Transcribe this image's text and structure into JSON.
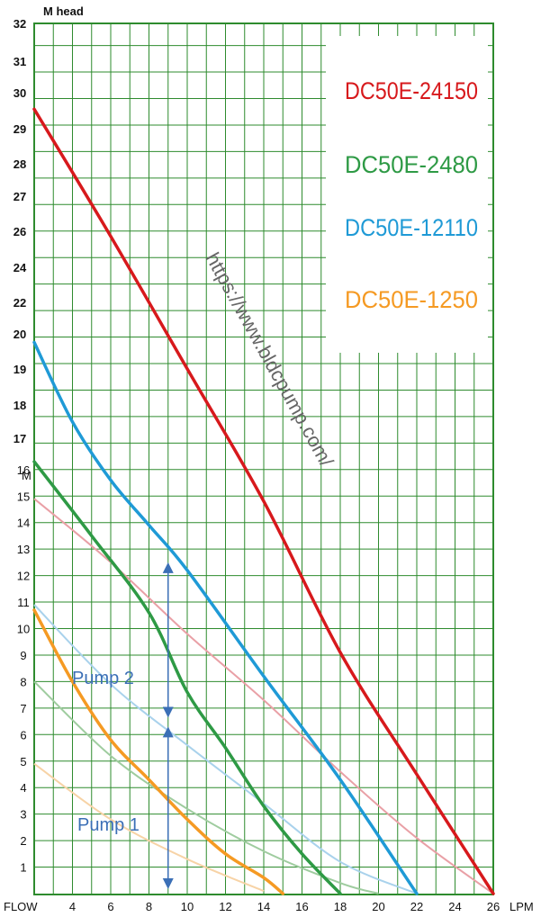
{
  "chart_data": {
    "type": "line",
    "ylabel": "M head",
    "ylabel_lower": "M",
    "xlabel_left": "FLOW",
    "xlabel_right": "LPM",
    "x_ticks": [
      "4",
      "6",
      "8",
      "10",
      "12",
      "14",
      "16",
      "18",
      "20",
      "22",
      "24",
      "26"
    ],
    "y_ticks_upper": [
      "32",
      "31",
      "30",
      "29",
      "28",
      "27",
      "26",
      "24",
      "22",
      "20",
      "19",
      "18",
      "17"
    ],
    "y_ticks_lower": [
      "16",
      "15",
      "14",
      "13",
      "12",
      "11",
      "10",
      "9",
      "8",
      "7",
      "6",
      "5",
      "4",
      "3",
      "2",
      "1"
    ],
    "xlim": [
      2,
      26
    ],
    "series": [
      {
        "name": "DC50E-24150",
        "color": "#d7191c",
        "points": [
          [
            2,
            29.6
          ],
          [
            6,
            24.8
          ],
          [
            10,
            19.8
          ],
          [
            14,
            14.8
          ],
          [
            18,
            9.1
          ],
          [
            22,
            4.5
          ],
          [
            26,
            0
          ]
        ]
      },
      {
        "name": "DC50E-2480",
        "color": "#2e9a45",
        "points": [
          [
            2,
            16.3
          ],
          [
            5,
            13.5
          ],
          [
            8,
            10.6
          ],
          [
            10,
            7.6
          ],
          [
            12,
            5.5
          ],
          [
            14,
            3.3
          ],
          [
            16,
            1.5
          ],
          [
            18,
            0
          ]
        ]
      },
      {
        "name": "DC50E-12110",
        "color": "#1f9ad6",
        "points": [
          [
            2,
            20.8
          ],
          [
            4,
            17.8
          ],
          [
            6,
            15.6
          ],
          [
            8,
            13.9
          ],
          [
            10,
            12.2
          ],
          [
            14,
            8.2
          ],
          [
            18,
            4.3
          ],
          [
            22,
            0
          ]
        ]
      },
      {
        "name": "DC50E-1250",
        "color": "#f59a23",
        "points": [
          [
            2,
            10.7
          ],
          [
            4,
            8.0
          ],
          [
            6,
            5.8
          ],
          [
            8,
            4.3
          ],
          [
            10,
            2.8
          ],
          [
            12,
            1.5
          ],
          [
            14,
            0.6
          ],
          [
            15,
            0
          ]
        ]
      }
    ],
    "faded_series": [
      {
        "color": "#e9a0a6",
        "points": [
          [
            2,
            14.9
          ],
          [
            6,
            12.5
          ],
          [
            10,
            9.8
          ],
          [
            14,
            7.3
          ],
          [
            18,
            4.6
          ],
          [
            22,
            2.1
          ],
          [
            26,
            0
          ]
        ]
      },
      {
        "color": "#9fcc9f",
        "points": [
          [
            2,
            8.0
          ],
          [
            6,
            5.2
          ],
          [
            10,
            3.2
          ],
          [
            14,
            1.6
          ],
          [
            18,
            0.4
          ],
          [
            20,
            0
          ]
        ]
      },
      {
        "color": "#a9d2ec",
        "points": [
          [
            2,
            10.9
          ],
          [
            6,
            7.9
          ],
          [
            10,
            5.6
          ],
          [
            14,
            3.4
          ],
          [
            18,
            1.2
          ],
          [
            22,
            0
          ]
        ]
      },
      {
        "color": "#f7d3a6",
        "points": [
          [
            2,
            4.9
          ],
          [
            6,
            2.8
          ],
          [
            10,
            1.3
          ],
          [
            14,
            0.1
          ]
        ]
      }
    ],
    "annotations": [
      {
        "text": "Pump 2",
        "x": 9,
        "y_from": 6.3,
        "y_to": 12.4
      },
      {
        "text": "Pump 1",
        "x": 9,
        "y_from": 0,
        "y_to": 6.2
      }
    ],
    "watermark": "https://www.bldcpump.com/",
    "grid": true,
    "legend_placement": "top-right",
    "colors": {
      "frame": "#2e8b2e",
      "grid": "#2e8b2e",
      "annotation": "#3b6fb6"
    }
  }
}
